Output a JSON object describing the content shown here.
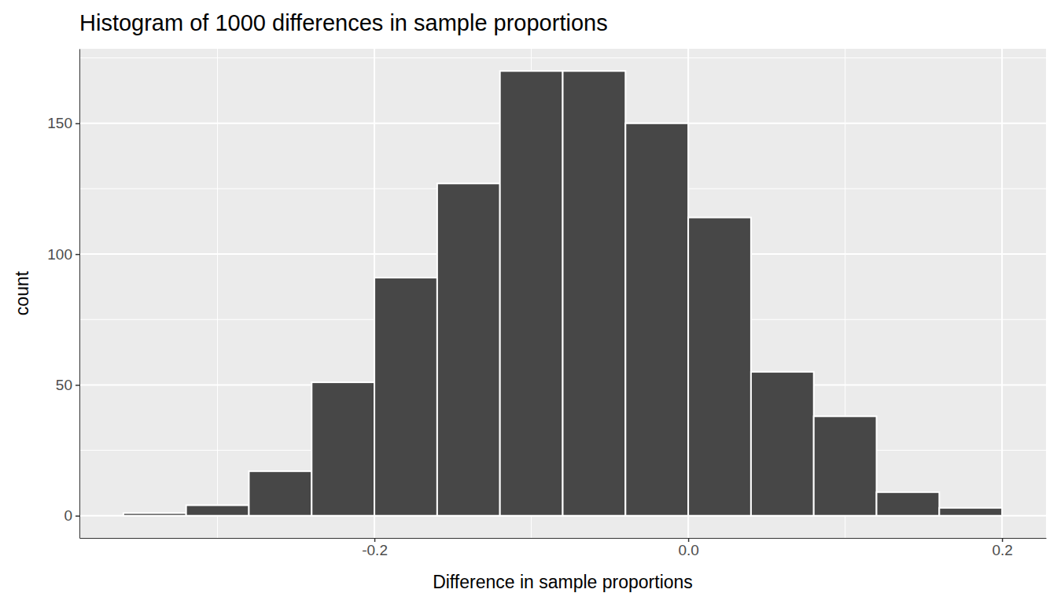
{
  "chart_data": {
    "type": "histogram",
    "title": "Histogram of 1000 differences in sample proportions",
    "x_label": "Difference in sample proportions",
    "y_label": "count",
    "bins": [
      -0.36,
      -0.32,
      -0.28,
      -0.24,
      -0.2,
      -0.16,
      -0.12,
      -0.08,
      -0.04,
      0,
      0.04,
      0.08,
      0.12,
      0.16,
      0.2
    ],
    "values": [
      1,
      4,
      17,
      51,
      91,
      127,
      170,
      170,
      150,
      114,
      55,
      38,
      9,
      3
    ],
    "color": "#474747",
    "xlim": [
      -0.388,
      0.228
    ],
    "ylim": [
      -8.5,
      178.5
    ],
    "xticks": [
      -0.2,
      {
        "value": 0,
        "label": "0.0"
      },
      0.2
    ],
    "yticks": [
      0,
      50,
      100,
      150
    ],
    "grid": true
  }
}
